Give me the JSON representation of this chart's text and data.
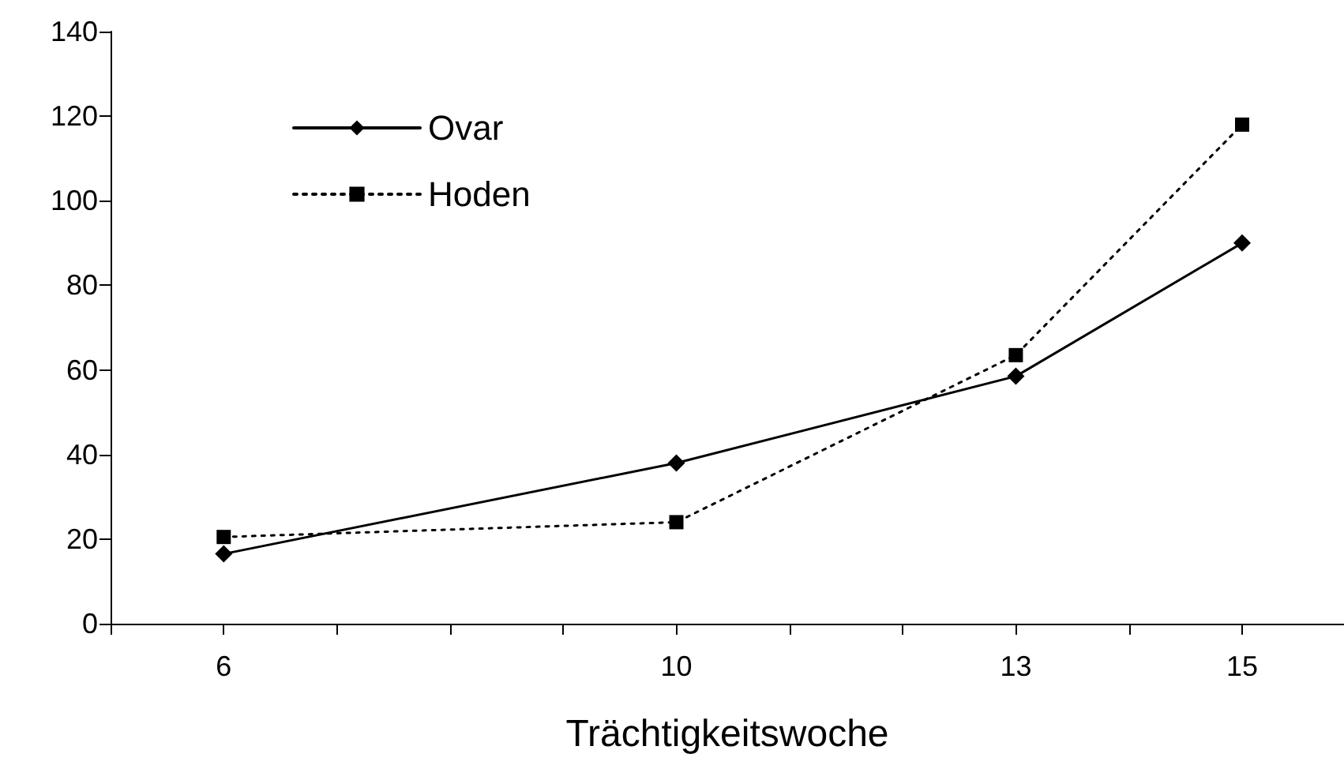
{
  "chart_data": {
    "type": "line",
    "xlabel": "Trächtigkeitswoche",
    "x": [
      6,
      10,
      13,
      15
    ],
    "series": [
      {
        "name": "Ovar",
        "color": "#000000",
        "values": [
          16.5,
          38,
          58.5,
          90
        ],
        "marker": "diamond",
        "line_style": "solid"
      },
      {
        "name": "Hoden",
        "color": "#000000",
        "values": [
          20.5,
          24,
          63.5,
          118
        ],
        "marker": "square",
        "line_style": "dotted"
      }
    ],
    "xlim": [
      5,
      15.9
    ],
    "xticks": [
      {
        "value": 5,
        "label": null
      },
      6,
      {
        "value": 7,
        "label": null
      },
      {
        "value": 8,
        "label": null
      },
      {
        "value": 9,
        "label": null
      },
      10,
      {
        "value": 11,
        "label": null
      },
      {
        "value": 12,
        "label": null
      },
      13,
      {
        "value": 14,
        "label": null
      },
      15
    ],
    "ylim": [
      0,
      140
    ],
    "yticks": [
      0,
      20,
      40,
      60,
      80,
      100,
      120,
      140
    ],
    "grid": false,
    "legend": "top left"
  }
}
